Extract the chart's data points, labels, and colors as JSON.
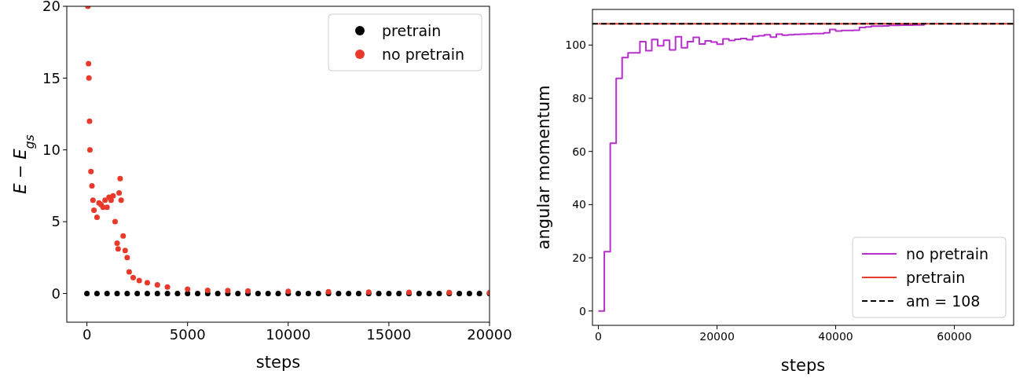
{
  "chart_data": [
    {
      "type": "scatter",
      "xlabel": "steps",
      "ylabel": "E − E$_{gs}$",
      "xlim": [
        -1000,
        20000
      ],
      "xticks": [
        0,
        5000,
        10000,
        15000,
        20000
      ],
      "ylim": [
        -2,
        20
      ],
      "yticks": [
        0,
        5,
        10,
        15,
        20
      ],
      "legend": "top right",
      "marker": "circle",
      "series": [
        {
          "name": "pretrain",
          "color": "#000000",
          "x": [
            0,
            500,
            1000,
            1500,
            2000,
            2500,
            3000,
            3500,
            4000,
            4500,
            5000,
            5500,
            6000,
            6500,
            7000,
            7500,
            8000,
            8500,
            9000,
            9500,
            10000,
            10500,
            11000,
            11500,
            12000,
            12500,
            13000,
            13500,
            14000,
            14500,
            15000,
            15500,
            16000,
            16500,
            17000,
            17500,
            18000,
            18500,
            19000,
            19500,
            20000
          ],
          "values": [
            0,
            0,
            0,
            0,
            0,
            0,
            0,
            0,
            0,
            0,
            0,
            0,
            0,
            0,
            0,
            0,
            0,
            0,
            0,
            0,
            0,
            0,
            0,
            0,
            0,
            0,
            0,
            0,
            0,
            0,
            0,
            0,
            0,
            0,
            0,
            0,
            0,
            0,
            0,
            0,
            0
          ]
        },
        {
          "name": "no pretrain",
          "color": "#e8392b",
          "x": [
            50,
            80,
            100,
            130,
            150,
            200,
            250,
            300,
            350,
            500,
            600,
            700,
            800,
            900,
            1000,
            1100,
            1200,
            1300,
            1400,
            1500,
            1550,
            1600,
            1650,
            1700,
            1800,
            1900,
            2000,
            2100,
            2300,
            2600,
            3000,
            3500,
            4000,
            5000,
            6000,
            7000,
            8000,
            10000,
            12000,
            14000,
            16000,
            18000,
            20000
          ],
          "values": [
            20,
            16,
            15,
            12,
            10,
            8.5,
            7.5,
            6.5,
            5.8,
            5.3,
            6.3,
            6.2,
            6.0,
            6.5,
            6.0,
            6.7,
            6.5,
            6.8,
            5.0,
            3.5,
            3.1,
            7.0,
            8.0,
            6.5,
            4.0,
            3.0,
            2.5,
            1.5,
            1.1,
            0.9,
            0.75,
            0.6,
            0.45,
            0.3,
            0.22,
            0.2,
            0.18,
            0.15,
            0.12,
            0.1,
            0.08,
            0.06,
            0.05
          ]
        }
      ]
    },
    {
      "type": "step",
      "xlabel": "steps",
      "ylabel": "angular momentum",
      "xlim": [
        -1000,
        70000
      ],
      "xticks": [
        0,
        20000,
        40000,
        60000
      ],
      "ylim": [
        -5.4,
        113.4
      ],
      "yticks": [
        0,
        20,
        40,
        60,
        80,
        100
      ],
      "legend": "bottom right",
      "series": [
        {
          "name": "no pretrain",
          "color": "#b72fcc",
          "x": [
            0,
            1000,
            2000,
            3000,
            4000,
            5000,
            6000,
            7000,
            8000,
            9000,
            10000,
            11000,
            12000,
            13000,
            14000,
            15000,
            16000,
            17000,
            18000,
            19000,
            20000,
            21000,
            22000,
            23000,
            24000,
            25000,
            26000,
            27000,
            28000,
            29000,
            30000,
            31000,
            32000,
            33000,
            34000,
            35000,
            36000,
            37000,
            38000,
            39000,
            40000,
            41000,
            42000,
            43000,
            44000,
            45000,
            46000,
            47000,
            48000,
            49000,
            50000,
            51000,
            52000,
            53000,
            54000,
            55000
          ],
          "values": [
            0,
            22.3,
            63.1,
            87.5,
            95.3,
            97.1,
            97.1,
            101.3,
            97.9,
            102.1,
            99.7,
            101.8,
            98.2,
            103.1,
            99.0,
            101.3,
            102.9,
            100.4,
            101.6,
            101.1,
            100.3,
            102.3,
            101.7,
            102.2,
            102.5,
            102.0,
            103.3,
            103.5,
            103.9,
            103.0,
            104.1,
            103.7,
            103.9,
            104.0,
            104.1,
            104.2,
            104.3,
            104.3,
            104.6,
            105.9,
            105.3,
            105.5,
            105.5,
            105.6,
            106.6,
            106.8,
            107.1,
            107.1,
            107.2,
            107.4,
            107.4,
            107.5,
            107.5,
            107.6,
            107.6,
            107.6
          ]
        },
        {
          "name": "pretrain",
          "color": "#e8392b",
          "type": "line",
          "x": [
            0,
            70000
          ],
          "values": [
            108,
            108
          ]
        }
      ],
      "ref_lines": [
        {
          "axis": "y",
          "value": 108,
          "label": "am = 108",
          "color": "#000000",
          "line_style": "dashed"
        }
      ]
    }
  ]
}
